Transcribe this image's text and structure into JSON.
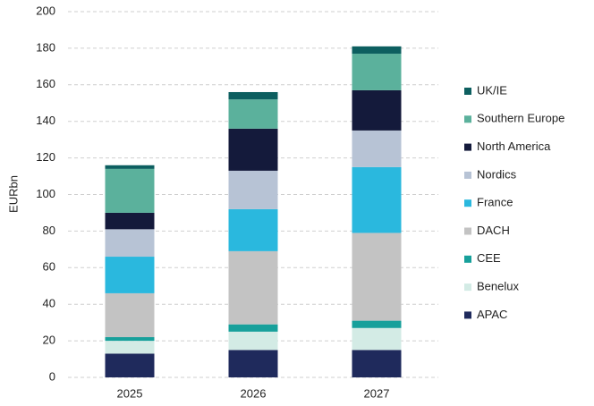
{
  "chart_data": {
    "type": "stacked_bar",
    "y_label": "EURbn",
    "categories": [
      "2025",
      "2026",
      "2027"
    ],
    "series": [
      {
        "name": "APAC",
        "color": "#1f2a5c",
        "values": [
          13,
          15,
          15
        ]
      },
      {
        "name": "Benelux",
        "color": "#d3ebe5",
        "values": [
          7,
          10,
          12
        ]
      },
      {
        "name": "CEE",
        "color": "#17a09b",
        "values": [
          2,
          4,
          4
        ]
      },
      {
        "name": "DACH",
        "color": "#c3c3c3",
        "values": [
          24,
          40,
          48
        ]
      },
      {
        "name": "France",
        "color": "#2ab8de",
        "values": [
          20,
          23,
          36
        ]
      },
      {
        "name": "Nordics",
        "color": "#b7c3d5",
        "values": [
          15,
          21,
          20
        ]
      },
      {
        "name": "North America",
        "color": "#141a3b",
        "values": [
          9,
          23,
          22
        ]
      },
      {
        "name": "Southern Europe",
        "color": "#5bb19c",
        "values": [
          24,
          16,
          20
        ]
      },
      {
        "name": "UK/IE",
        "color": "#0d5f60",
        "values": [
          2,
          4,
          4
        ]
      }
    ],
    "ylim": [
      0,
      200
    ],
    "yticks": [
      0,
      20,
      40,
      60,
      80,
      100,
      120,
      140,
      160,
      180,
      200
    ],
    "grid": true,
    "legend": "right"
  }
}
